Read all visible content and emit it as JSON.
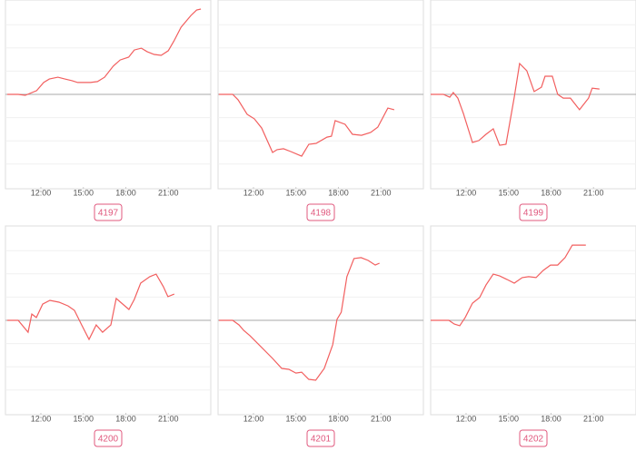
{
  "chart_data": [
    {
      "type": "line",
      "title": "4197",
      "color": "#f25f5f",
      "xlim": [
        9.5,
        24
      ],
      "ylim": [
        -4,
        4
      ],
      "yticks": [
        -3,
        -2,
        -1,
        0,
        1,
        2,
        3
      ],
      "baseline": 0,
      "grid": true,
      "xticks": [
        {
          "value": 12,
          "label": "12:00"
        },
        {
          "value": 15,
          "label": "15:00"
        },
        {
          "value": 18,
          "label": "18:00"
        },
        {
          "value": 21,
          "label": "21:00"
        }
      ],
      "x": [
        9.63,
        10.4,
        10.9,
        11.7,
        12.2,
        12.6,
        13.2,
        13.7,
        14.2,
        14.6,
        15.5,
        16.0,
        16.5,
        17.1,
        17.6,
        18.2,
        18.6,
        19.1,
        19.5,
        20.0,
        20.5,
        21.0,
        21.4,
        21.9,
        22.6,
        23.0,
        23.3
      ],
      "values": [
        0,
        0,
        -0.04,
        0.16,
        0.51,
        0.66,
        0.74,
        0.66,
        0.59,
        0.51,
        0.51,
        0.55,
        0.74,
        1.21,
        1.48,
        1.6,
        1.91,
        1.99,
        1.84,
        1.72,
        1.68,
        1.88,
        2.3,
        2.89,
        3.4,
        3.63,
        3.67
      ]
    },
    {
      "type": "line",
      "title": "4198",
      "color": "#f25f5f",
      "xlim": [
        9.5,
        24
      ],
      "ylim": [
        -4,
        4
      ],
      "yticks": [
        -3,
        -2,
        -1,
        0,
        1,
        2,
        3
      ],
      "baseline": 0,
      "grid": true,
      "xticks": [
        {
          "value": 12,
          "label": "12:00"
        },
        {
          "value": 15,
          "label": "15:00"
        },
        {
          "value": 18,
          "label": "18:00"
        },
        {
          "value": 21,
          "label": "21:00"
        }
      ],
      "x": [
        9.56,
        10.53,
        10.91,
        11.55,
        12.06,
        12.58,
        13.35,
        13.67,
        14.12,
        14.63,
        15.4,
        15.91,
        16.42,
        17.19,
        17.51,
        17.77,
        18.47,
        18.99,
        19.63,
        20.27,
        20.78,
        21.49,
        21.94
      ],
      "values": [
        0,
        0,
        -0.23,
        -0.86,
        -1.05,
        -1.45,
        -2.5,
        -2.38,
        -2.34,
        -2.46,
        -2.66,
        -2.15,
        -2.11,
        -1.84,
        -1.8,
        -1.13,
        -1.29,
        -1.72,
        -1.76,
        -1.64,
        -1.41,
        -0.59,
        -0.66
      ]
    },
    {
      "type": "line",
      "title": "4199",
      "color": "#f25f5f",
      "xlim": [
        9.5,
        24
      ],
      "ylim": [
        -4,
        4
      ],
      "yticks": [
        -3,
        -2,
        -1,
        0,
        1,
        2,
        3
      ],
      "baseline": 0,
      "grid": true,
      "xticks": [
        {
          "value": 12,
          "label": "12:00"
        },
        {
          "value": 15,
          "label": "15:00"
        },
        {
          "value": 18,
          "label": "18:00"
        },
        {
          "value": 21,
          "label": "21:00"
        }
      ],
      "x": [
        9.5,
        10.4,
        10.85,
        11.1,
        11.42,
        11.81,
        12.45,
        12.9,
        13.41,
        13.92,
        14.37,
        14.82,
        15.4,
        15.78,
        16.29,
        16.81,
        17.32,
        17.58,
        18.09,
        18.47,
        18.86,
        19.37,
        20.01,
        20.65,
        20.91,
        21.42
      ],
      "values": [
        0,
        0,
        -0.12,
        0.08,
        -0.16,
        -0.82,
        -2.07,
        -1.99,
        -1.72,
        -1.48,
        -2.19,
        -2.15,
        -0.12,
        1.33,
        1.02,
        0.12,
        0.31,
        0.78,
        0.78,
        0,
        -0.16,
        -0.16,
        -0.66,
        -0.16,
        0.27,
        0.23
      ]
    },
    {
      "type": "line",
      "title": "4200",
      "color": "#f25f5f",
      "xlim": [
        9.5,
        24
      ],
      "ylim": [
        -4,
        4
      ],
      "yticks": [
        -3,
        -2,
        -1,
        0,
        1,
        2,
        3
      ],
      "baseline": 0,
      "grid": true,
      "xticks": [
        {
          "value": 12,
          "label": "12:00"
        },
        {
          "value": 15,
          "label": "15:00"
        },
        {
          "value": 18,
          "label": "18:00"
        },
        {
          "value": 21,
          "label": "21:00"
        }
      ],
      "x": [
        9.63,
        10.4,
        11.1,
        11.36,
        11.68,
        12.13,
        12.64,
        13.28,
        13.92,
        14.37,
        14.88,
        15.4,
        15.91,
        16.36,
        16.94,
        17.32,
        18.22,
        18.6,
        19.05,
        19.69,
        20.14,
        20.65,
        20.97,
        21.42
      ],
      "values": [
        0,
        0,
        -0.51,
        0.27,
        0.12,
        0.7,
        0.86,
        0.78,
        0.62,
        0.43,
        -0.2,
        -0.82,
        -0.2,
        -0.51,
        -0.2,
        0.94,
        0.47,
        0.9,
        1.6,
        1.88,
        1.99,
        1.45,
        1.02,
        1.13
      ]
    },
    {
      "type": "line",
      "title": "4201",
      "color": "#f25f5f",
      "xlim": [
        9.5,
        24
      ],
      "ylim": [
        -4,
        4
      ],
      "yticks": [
        -3,
        -2,
        -1,
        0,
        1,
        2,
        3
      ],
      "baseline": 0,
      "grid": true,
      "xticks": [
        {
          "value": 12,
          "label": "12:00"
        },
        {
          "value": 15,
          "label": "15:00"
        },
        {
          "value": 18,
          "label": "18:00"
        },
        {
          "value": 21,
          "label": "21:00"
        }
      ],
      "x": [
        9.56,
        10.53,
        10.98,
        11.3,
        11.75,
        13.35,
        14.0,
        14.5,
        15.0,
        15.4,
        15.9,
        16.4,
        17.0,
        17.6,
        17.9,
        18.2,
        18.6,
        19.1,
        19.6,
        20.1,
        20.6,
        20.9
      ],
      "values": [
        0,
        0,
        -0.2,
        -0.43,
        -0.66,
        -1.64,
        -2.07,
        -2.11,
        -2.27,
        -2.23,
        -2.54,
        -2.58,
        -2.07,
        -1.05,
        0.04,
        0.35,
        1.88,
        2.66,
        2.7,
        2.58,
        2.38,
        2.46
      ]
    },
    {
      "type": "line",
      "title": "4202",
      "color": "#f25f5f",
      "xlim": [
        9.5,
        24
      ],
      "ylim": [
        -4,
        4
      ],
      "yticks": [
        -3,
        -2,
        -1,
        0,
        1,
        2,
        3
      ],
      "baseline": 0,
      "grid": true,
      "xticks": [
        {
          "value": 12,
          "label": "12:00"
        },
        {
          "value": 15,
          "label": "15:00"
        },
        {
          "value": 18,
          "label": "18:00"
        },
        {
          "value": 21,
          "label": "21:00"
        }
      ],
      "x": [
        9.5,
        10.78,
        11.17,
        11.55,
        11.94,
        12.45,
        12.96,
        13.41,
        13.92,
        14.37,
        14.88,
        15.4,
        15.97,
        16.42,
        16.94,
        17.45,
        17.96,
        18.47,
        18.99,
        19.5,
        20.01,
        20.46
      ],
      "values": [
        0,
        0,
        -0.16,
        -0.23,
        0.12,
        0.74,
        0.98,
        1.52,
        1.99,
        1.91,
        1.76,
        1.6,
        1.84,
        1.88,
        1.84,
        2.15,
        2.38,
        2.38,
        2.7,
        3.24,
        3.24,
        3.24
      ]
    }
  ]
}
